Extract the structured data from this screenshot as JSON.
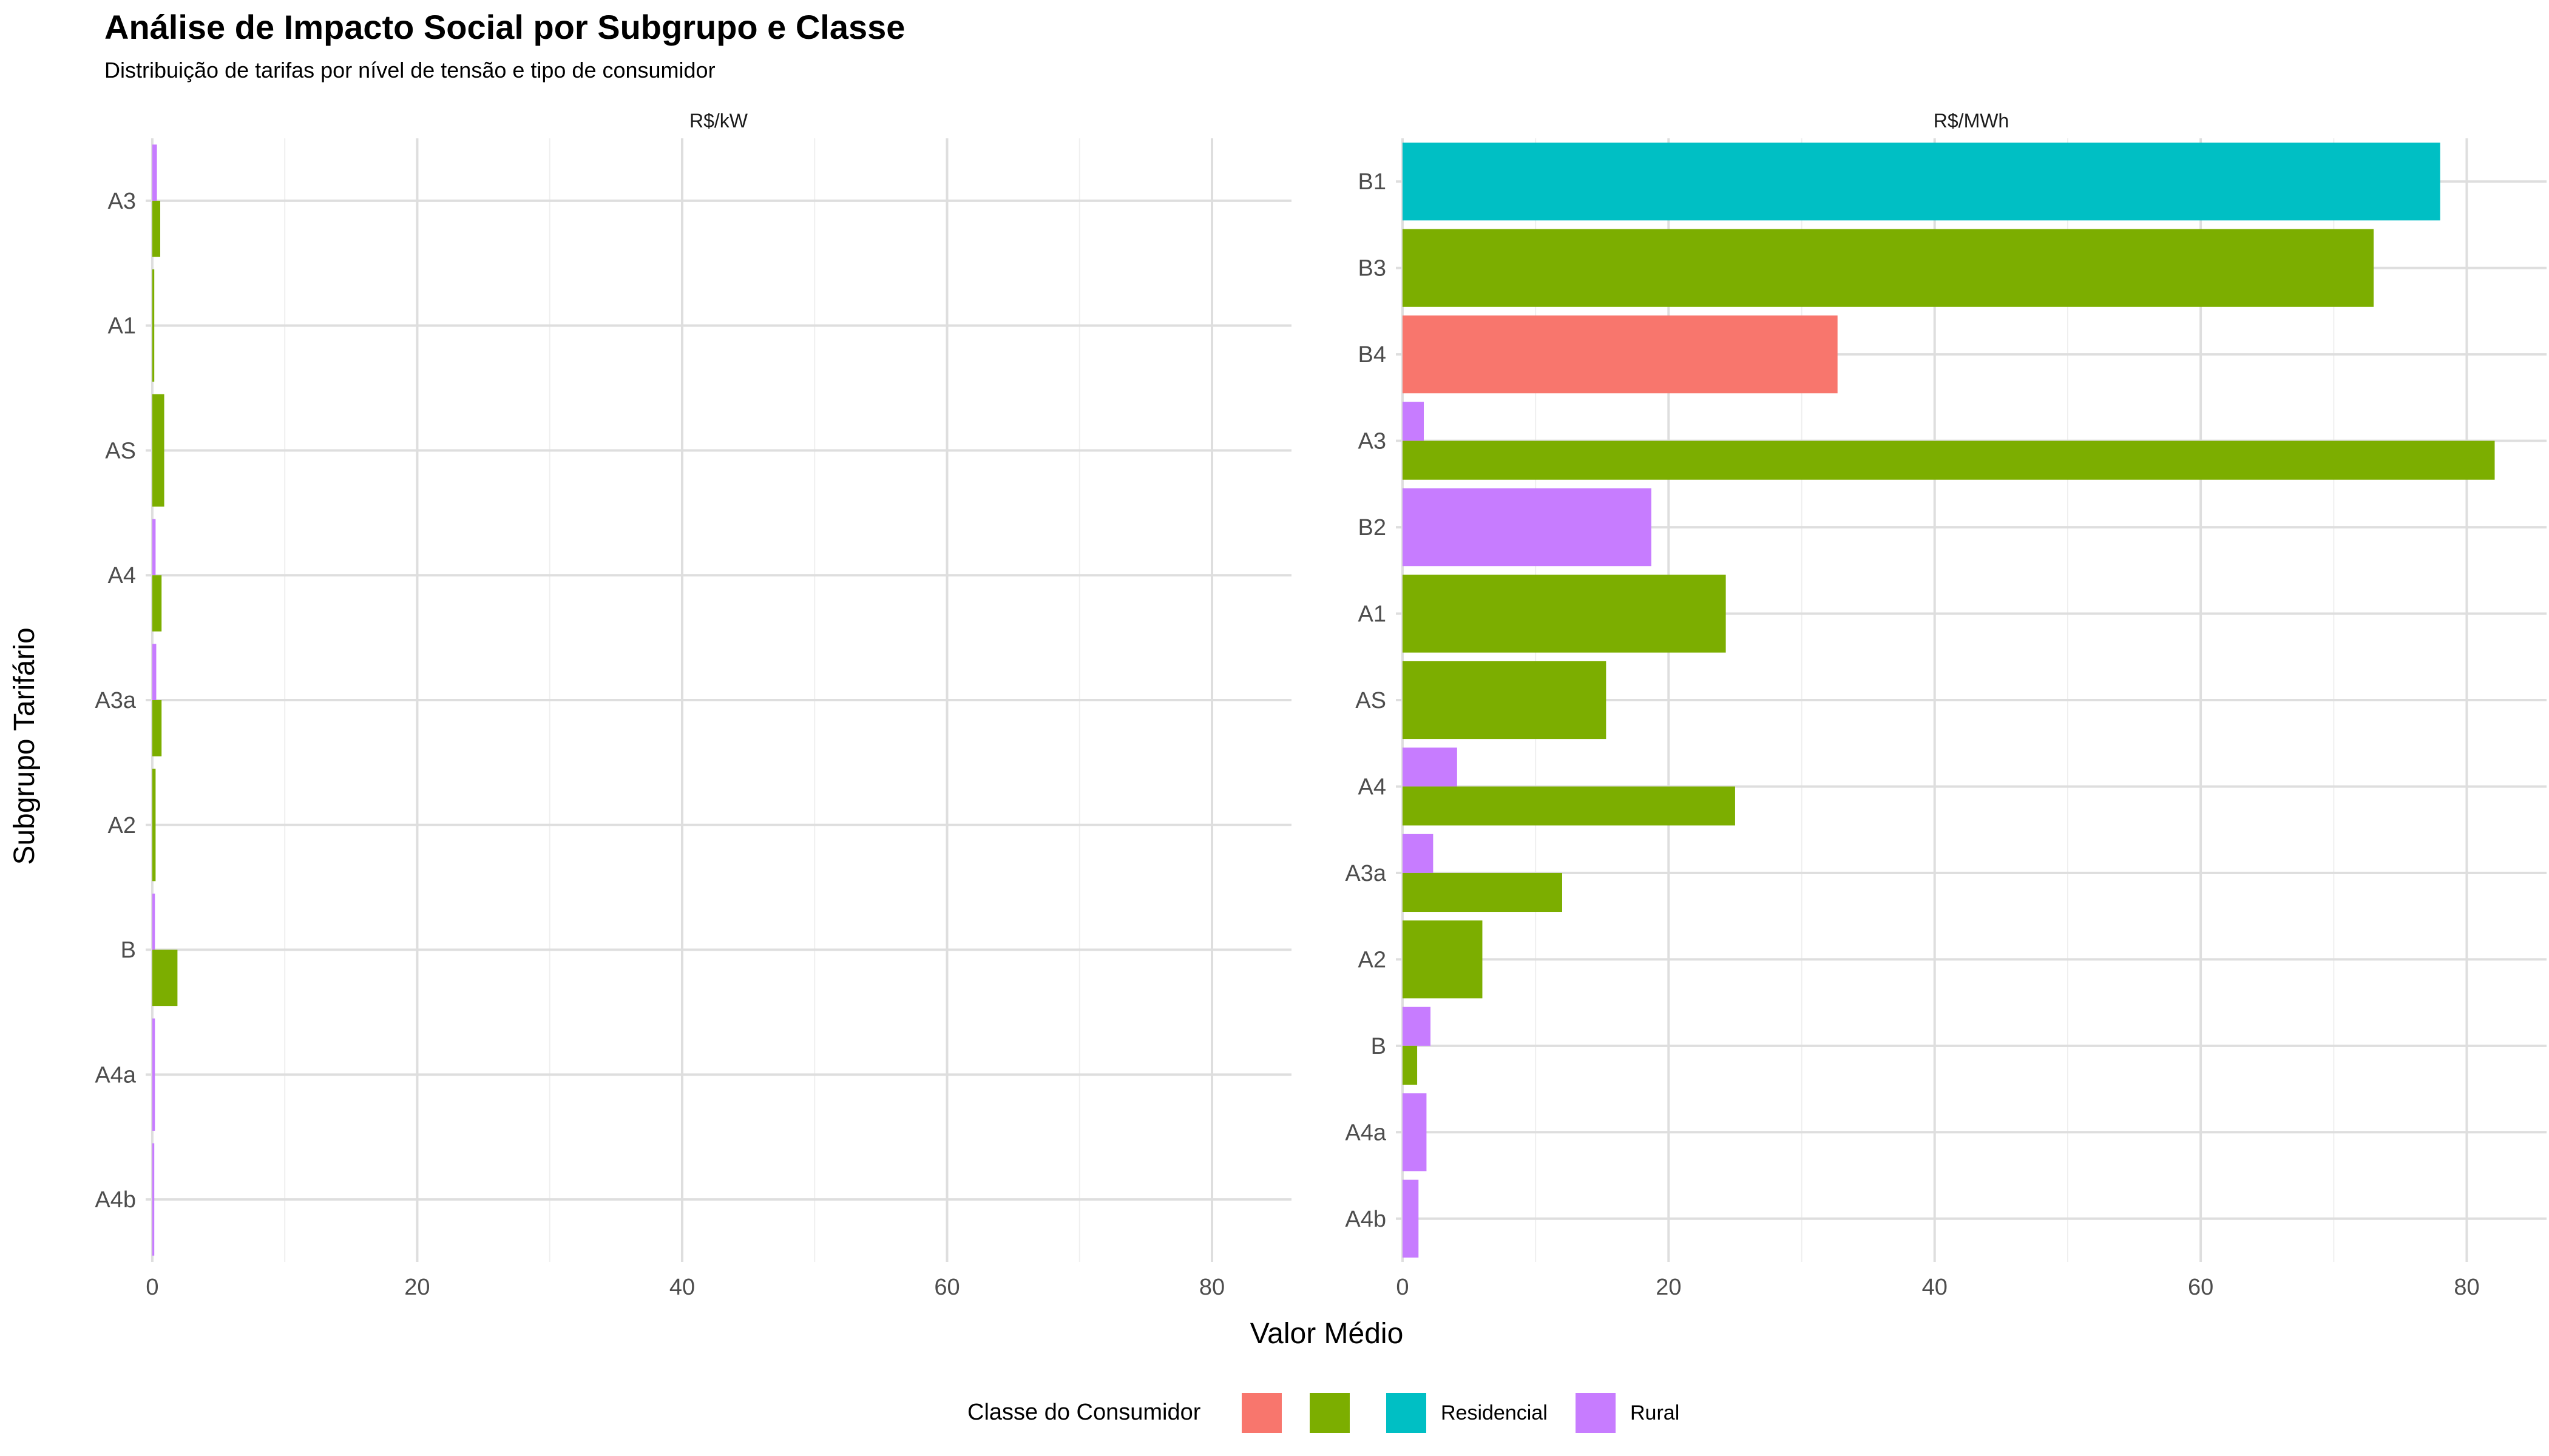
{
  "chart_data": {
    "type": "bar",
    "orientation": "horizontal",
    "title": "Análise de Impacto Social por Subgrupo e Classe",
    "subtitle": "Distribuição de tarifas por nível de tensão e tipo de consumidor",
    "xlabel": "Valor Médio",
    "ylabel": "Subgrupo Tarifário",
    "xlim": [
      -0.5,
      86
    ],
    "xticks": [
      0,
      20,
      40,
      60,
      80
    ],
    "legend": {
      "title": "Classe do Consumidor",
      "position": "bottom",
      "entries": [
        {
          "label": "",
          "color": "#F8766D"
        },
        {
          "label": "",
          "color": "#7CAE00"
        },
        {
          "label": "Residencial",
          "color": "#00BFC4"
        },
        {
          "label": "Rural",
          "color": "#C77CFF"
        }
      ]
    },
    "panels": [
      {
        "strip": "R$/kW",
        "categories": [
          "A3",
          "A1",
          "AS",
          "A4",
          "A3a",
          "A2",
          "B",
          "A4a",
          "A4b"
        ],
        "bars": [
          {
            "category": "A3",
            "class_index": 3,
            "value": 0.35,
            "slot": 0,
            "slots": 2
          },
          {
            "category": "A3",
            "class_index": 1,
            "value": 0.6,
            "slot": 1,
            "slots": 2
          },
          {
            "category": "A1",
            "class_index": 1,
            "value": 0.15,
            "slot": 0,
            "slots": 1
          },
          {
            "category": "AS",
            "class_index": 1,
            "value": 0.9,
            "slot": 0,
            "slots": 1
          },
          {
            "category": "A4",
            "class_index": 3,
            "value": 0.25,
            "slot": 0,
            "slots": 2
          },
          {
            "category": "A4",
            "class_index": 1,
            "value": 0.7,
            "slot": 1,
            "slots": 2
          },
          {
            "category": "A3a",
            "class_index": 3,
            "value": 0.3,
            "slot": 0,
            "slots": 2
          },
          {
            "category": "A3a",
            "class_index": 1,
            "value": 0.7,
            "slot": 1,
            "slots": 2
          },
          {
            "category": "A2",
            "class_index": 1,
            "value": 0.25,
            "slot": 0,
            "slots": 1
          },
          {
            "category": "B",
            "class_index": 3,
            "value": 0.2,
            "slot": 0,
            "slots": 2
          },
          {
            "category": "B",
            "class_index": 1,
            "value": 1.9,
            "slot": 1,
            "slots": 2
          },
          {
            "category": "A4a",
            "class_index": 3,
            "value": 0.2,
            "slot": 0,
            "slots": 1
          },
          {
            "category": "A4b",
            "class_index": 3,
            "value": 0.15,
            "slot": 0,
            "slots": 1
          }
        ]
      },
      {
        "strip": "R$/MWh",
        "categories": [
          "B1",
          "B3",
          "B4",
          "A3",
          "B2",
          "A1",
          "AS",
          "A4",
          "A3a",
          "A2",
          "B",
          "A4a",
          "A4b"
        ],
        "bars": [
          {
            "category": "B1",
            "class_index": 2,
            "value": 78,
            "slot": 0,
            "slots": 1
          },
          {
            "category": "B3",
            "class_index": 1,
            "value": 73,
            "slot": 0,
            "slots": 1
          },
          {
            "category": "B4",
            "class_index": 0,
            "value": 32.7,
            "slot": 0,
            "slots": 1
          },
          {
            "category": "A3",
            "class_index": 3,
            "value": 1.6,
            "slot": 0,
            "slots": 2
          },
          {
            "category": "A3",
            "class_index": 1,
            "value": 82.1,
            "slot": 1,
            "slots": 2
          },
          {
            "category": "B2",
            "class_index": 3,
            "value": 18.7,
            "slot": 0,
            "slots": 1
          },
          {
            "category": "A1",
            "class_index": 1,
            "value": 24.3,
            "slot": 0,
            "slots": 1
          },
          {
            "category": "AS",
            "class_index": 1,
            "value": 15.3,
            "slot": 0,
            "slots": 1
          },
          {
            "category": "A4",
            "class_index": 3,
            "value": 4.1,
            "slot": 0,
            "slots": 2
          },
          {
            "category": "A4",
            "class_index": 1,
            "value": 25,
            "slot": 1,
            "slots": 2
          },
          {
            "category": "A3a",
            "class_index": 3,
            "value": 2.3,
            "slot": 0,
            "slots": 2
          },
          {
            "category": "A3a",
            "class_index": 1,
            "value": 12,
            "slot": 1,
            "slots": 2
          },
          {
            "category": "A2",
            "class_index": 1,
            "value": 6,
            "slot": 0,
            "slots": 1
          },
          {
            "category": "B",
            "class_index": 3,
            "value": 2.1,
            "slot": 0,
            "slots": 2
          },
          {
            "category": "B",
            "class_index": 1,
            "value": 1.1,
            "slot": 1,
            "slots": 2
          },
          {
            "category": "A4a",
            "class_index": 3,
            "value": 1.8,
            "slot": 0,
            "slots": 1
          },
          {
            "category": "A4b",
            "class_index": 3,
            "value": 1.2,
            "slot": 0,
            "slots": 1
          }
        ]
      }
    ]
  }
}
